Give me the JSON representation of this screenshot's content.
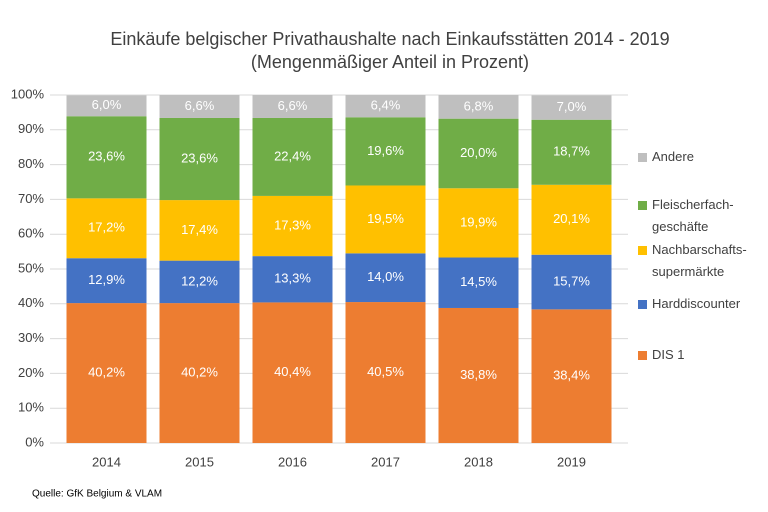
{
  "chart_data": {
    "type": "stacked_bar",
    "title": "Einkäufe belgischer Privathaushalte nach Einkaufsstätten 2014 - 2019",
    "subtitle": "(Mengenmäßiger Anteil in Prozent)",
    "source": "Quelle: GfK Belgium & VLAM",
    "categories": [
      "2014",
      "2015",
      "2016",
      "2017",
      "2018",
      "2019"
    ],
    "series": [
      {
        "name": "DIS 1",
        "color": "#ed7d31",
        "values": [
          40.2,
          40.2,
          40.4,
          40.5,
          38.8,
          38.4
        ],
        "value_labels": [
          "40,2%",
          "40,2%",
          "40,4%",
          "40,5%",
          "38,8%",
          "38,4%"
        ]
      },
      {
        "name": "Harddiscounter",
        "color": "#4472c4",
        "values": [
          12.9,
          12.2,
          13.3,
          14.0,
          14.5,
          15.7
        ],
        "value_labels": [
          "12,9%",
          "12,2%",
          "13,3%",
          "14,0%",
          "14,5%",
          "15,7%"
        ]
      },
      {
        "name": "Nachbarschafts-supermärkte",
        "color": "#ffc000",
        "values": [
          17.2,
          17.4,
          17.3,
          19.5,
          19.9,
          20.1
        ],
        "value_labels": [
          "17,2%",
          "17,4%",
          "17,3%",
          "19,5%",
          "19,9%",
          "20,1%"
        ]
      },
      {
        "name": "Fleischerfach-geschäfte",
        "color": "#70ad47",
        "values": [
          23.6,
          23.6,
          22.4,
          19.6,
          20.0,
          18.7
        ],
        "value_labels": [
          "23,6%",
          "23,6%",
          "22,4%",
          "19,6%",
          "20,0%",
          "18,7%"
        ]
      },
      {
        "name": "Andere",
        "color": "#bfbfbf",
        "values": [
          6.0,
          6.6,
          6.6,
          6.4,
          6.8,
          7.0
        ],
        "value_labels": [
          "6,0%",
          "6,6%",
          "6,6%",
          "6,4%",
          "6,8%",
          "7,0%"
        ]
      }
    ],
    "ylim": [
      0,
      100
    ],
    "yticks": [
      {
        "value": 0,
        "label": "0%"
      },
      {
        "value": 10,
        "label": "10%"
      },
      {
        "value": 20,
        "label": "20%"
      },
      {
        "value": 30,
        "label": "30%"
      },
      {
        "value": 40,
        "label": "40%"
      },
      {
        "value": 50,
        "label": "50%"
      },
      {
        "value": 60,
        "label": "60%"
      },
      {
        "value": 70,
        "label": "70%"
      },
      {
        "value": 80,
        "label": "80%"
      },
      {
        "value": 90,
        "label": "90%"
      },
      {
        "value": 100,
        "label": "100%"
      }
    ],
    "grid": true
  }
}
